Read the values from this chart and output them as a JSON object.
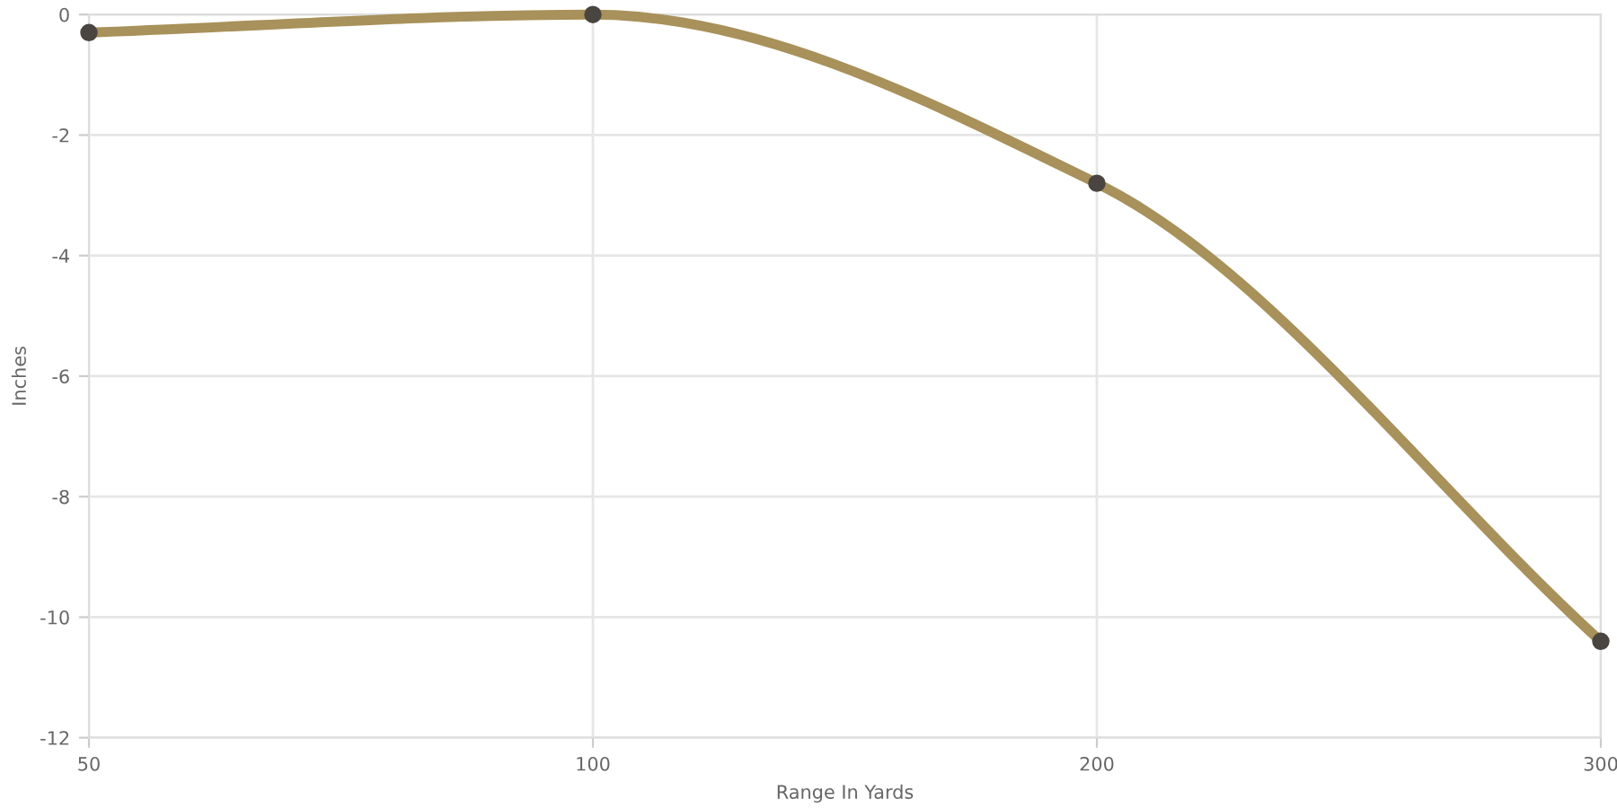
{
  "chart_data": {
    "type": "line",
    "xlabel": "Range In Yards",
    "ylabel": "Inches",
    "categories": [
      "50",
      "100",
      "200",
      "300"
    ],
    "series": [
      {
        "color": "#a8915a",
        "values": [
          -0.3,
          0,
          -2.8,
          -10.4
        ]
      }
    ],
    "ylim": [
      -12,
      0
    ],
    "yticks": [
      -12,
      -10,
      -8,
      -6,
      -4,
      -2,
      0
    ],
    "grid": true,
    "marker": "circle",
    "line_style": "solid",
    "legend": false
  }
}
